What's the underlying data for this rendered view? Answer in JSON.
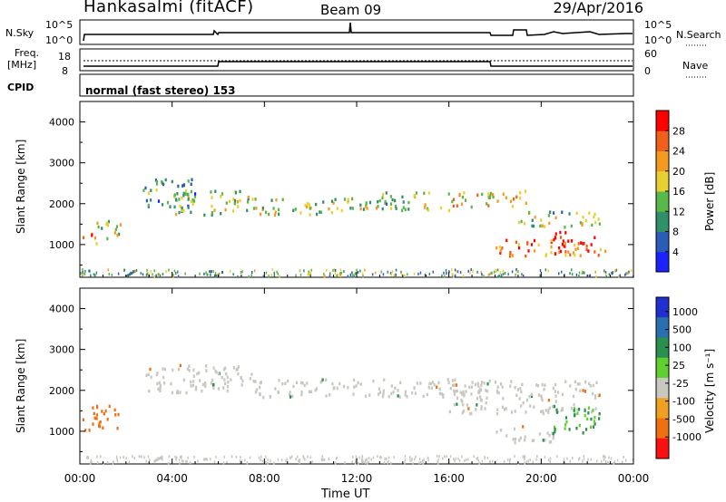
{
  "header": {
    "station": "Hankasalmi (fitACF)",
    "beam": "Beam 09",
    "date": "29/Apr/2016"
  },
  "top_panel": {
    "left_label": "N.Sky",
    "left_ticks": [
      "10^5",
      "10^0"
    ],
    "right_ticks": [
      "10^5",
      "10^0"
    ],
    "right_label": "N.Search"
  },
  "freq_panel": {
    "label_line1": "Freq.",
    "label_line2": "[MHz]",
    "left_ticks": [
      "18",
      "8"
    ],
    "right_ticks": [
      "60",
      "0"
    ],
    "right_label": "Nave"
  },
  "cpid": {
    "label": "CPID",
    "value": "normal (fast stereo) 153"
  },
  "colors": {
    "power_scale": [
      "#1a22ff",
      "#2a5cb8",
      "#30906a",
      "#58b848",
      "#e8d030",
      "#f59a20",
      "#f06018",
      "#ff0000"
    ],
    "velocity_scale": [
      "#2030d0",
      "#2a70b0",
      "#2a9050",
      "#60d030",
      "#c8c8c0",
      "#f0a020",
      "#f07010",
      "#ff1010"
    ]
  },
  "chart_data": [
    {
      "type": "heatmap",
      "name": "power",
      "ylabel": "Slant Range [km]",
      "yticks": [
        "1000",
        "2000",
        "3000",
        "4000"
      ],
      "ylim": [
        200,
        4500
      ],
      "xticks": [
        "00:00",
        "04:00",
        "08:00",
        "12:00",
        "16:00",
        "20:00",
        "00:00"
      ],
      "xlim_hours": [
        0,
        24
      ],
      "colorbar": {
        "label": "Power [dB]",
        "ticks": [
          "4",
          "8",
          "12",
          "16",
          "20",
          "24",
          "28"
        ],
        "range": [
          0,
          30
        ]
      },
      "regions": [
        {
          "t0": 0.1,
          "t1": 0.7,
          "r0": 1000,
          "r1": 1250,
          "level": 29
        },
        {
          "t0": 0.6,
          "t1": 1.8,
          "r0": 1000,
          "r1": 1550,
          "level": 16
        },
        {
          "t0": 2.7,
          "t1": 5.0,
          "r0": 1900,
          "r1": 2600,
          "level": 10
        },
        {
          "t0": 4.0,
          "t1": 7.5,
          "r0": 1700,
          "r1": 2300,
          "level": 14
        },
        {
          "t0": 7.5,
          "t1": 11.0,
          "r0": 1700,
          "r1": 2100,
          "level": 16
        },
        {
          "t0": 11.0,
          "t1": 16.0,
          "r0": 1800,
          "r1": 2250,
          "level": 14
        },
        {
          "t0": 16.0,
          "t1": 19.5,
          "r0": 1900,
          "r1": 2300,
          "level": 18
        },
        {
          "t0": 19.0,
          "t1": 22.5,
          "r0": 1400,
          "r1": 1800,
          "level": 14
        },
        {
          "t0": 18.0,
          "t1": 22.8,
          "r0": 700,
          "r1": 1100,
          "level": 22
        },
        {
          "t0": 20.5,
          "t1": 22.3,
          "r0": 800,
          "r1": 1300,
          "level": 29
        }
      ],
      "colorbar_label": "Power [dB]"
    },
    {
      "type": "heatmap",
      "name": "velocity",
      "ylabel": "Slant Range [km]",
      "yticks": [
        "1000",
        "2000",
        "3000",
        "4000"
      ],
      "ylim": [
        200,
        4500
      ],
      "xticks": [
        "00:00",
        "04:00",
        "08:00",
        "12:00",
        "16:00",
        "20:00",
        "00:00"
      ],
      "xlabel": "Time UT",
      "xlim_hours": [
        0,
        24
      ],
      "colorbar": {
        "label": "Velocity [m s⁻¹]",
        "ticks": [
          "1000",
          "500",
          "100",
          "25",
          "-25",
          "-100",
          "-500",
          "-1000"
        ]
      },
      "regions": [
        {
          "t0": 0.1,
          "t1": 1.8,
          "r0": 1000,
          "r1": 1600,
          "level": -200
        },
        {
          "t0": 2.7,
          "t1": 7.5,
          "r0": 1900,
          "r1": 2600,
          "level": 0
        },
        {
          "t0": 7.5,
          "t1": 18.0,
          "r0": 1800,
          "r1": 2250,
          "level": 0
        },
        {
          "t0": 16.0,
          "t1": 22.5,
          "r0": 1400,
          "r1": 2200,
          "level": 0
        },
        {
          "t0": 18.0,
          "t1": 20.5,
          "r0": 700,
          "r1": 1100,
          "level": 0
        },
        {
          "t0": 20.5,
          "t1": 22.5,
          "r0": 900,
          "r1": 1600,
          "level": 120
        }
      ],
      "colorbar_label": "Velocity [m s⁻¹]"
    }
  ]
}
